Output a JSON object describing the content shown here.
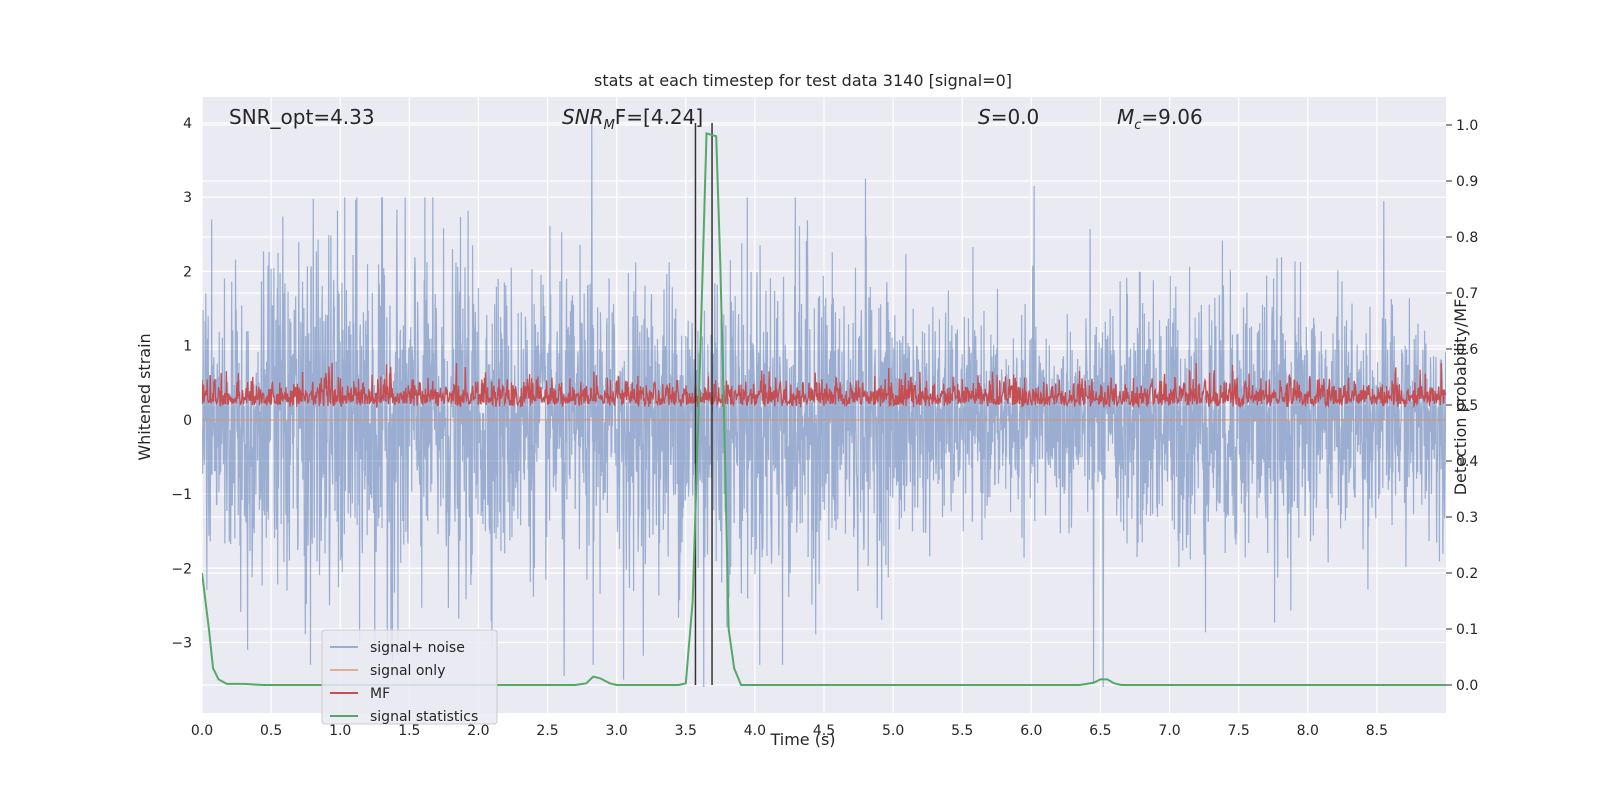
{
  "chart_data": {
    "type": "line",
    "title": "stats at each timestep for test data 3140 [signal=0]",
    "xlabel": "Time (s)",
    "ylabel_left": "Whitened strain",
    "ylabel_right": "Detection probability/MF",
    "xlim": [
      0.0,
      9.0
    ],
    "ylim_left": [
      -3.95,
      4.35
    ],
    "ylim_right": [
      -0.05,
      1.05
    ],
    "xticks": [
      0.0,
      0.5,
      1.0,
      1.5,
      2.0,
      2.5,
      3.0,
      3.5,
      4.0,
      4.5,
      5.0,
      5.5,
      6.0,
      6.5,
      7.0,
      7.5,
      8.0,
      8.5
    ],
    "xtick_labels": [
      "0.0",
      "0.5",
      "1.0",
      "1.5",
      "2.0",
      "2.5",
      "3.0",
      "3.5",
      "4.0",
      "4.5",
      "5.0",
      "5.5",
      "6.0",
      "6.5",
      "7.0",
      "7.5",
      "8.0",
      "8.5"
    ],
    "yticks_left": [
      -3,
      -2,
      -1,
      0,
      1,
      2,
      3,
      4
    ],
    "ytick_labels_left": [
      "−3",
      "−2",
      "−1",
      "0",
      "1",
      "2",
      "3",
      "4"
    ],
    "yticks_right": [
      0.0,
      0.1,
      0.2,
      0.3,
      0.4,
      0.5,
      0.6,
      0.7,
      0.8,
      0.9,
      1.0
    ],
    "ytick_labels_right": [
      "0.0",
      "0.1",
      "0.2",
      "0.3",
      "0.4",
      "0.5",
      "0.6",
      "0.7",
      "0.8",
      "0.9",
      "1.0"
    ],
    "annotations": {
      "snr_opt": "SNR_opt=4.33",
      "snr_mf_prefix": "SNR",
      "snr_mf_sub": "M",
      "snr_mf_suffix": "F=[4.24]",
      "s_var": "S",
      "s_value": "=0.0",
      "mc_var": "M",
      "mc_sub": "c",
      "mc_value": "=9.06"
    },
    "vlines": [
      3.57,
      3.69
    ],
    "series": [
      {
        "name": "signal+ noise",
        "axis": "left",
        "color": "#4c72b0",
        "alpha": 0.5,
        "kind": "noise",
        "amplitude_range": [
          -3.5,
          4.0
        ],
        "spikes": [
          [
            2.82,
            4.0
          ],
          [
            2.83,
            -3.3
          ],
          [
            2.62,
            -3.45
          ],
          [
            3.63,
            -3.6
          ],
          [
            4.8,
            3.25
          ],
          [
            6.02,
            3.15
          ],
          [
            8.55,
            2.95
          ],
          [
            6.45,
            -3.55
          ],
          [
            6.52,
            -3.6
          ],
          [
            0.33,
            -3.1
          ],
          [
            4.2,
            -3.3
          ],
          [
            0.07,
            2.7
          ],
          [
            3.05,
            -3.5
          ]
        ]
      },
      {
        "name": "signal only",
        "axis": "left",
        "color": "#dd8452",
        "alpha": 0.6,
        "x": [
          0.0,
          9.0
        ],
        "y": [
          0.0,
          0.0
        ]
      },
      {
        "name": "MF",
        "axis": "right",
        "color": "#c44e52",
        "kind": "mf",
        "baseline": 0.5,
        "range": [
          0.475,
          0.575
        ]
      },
      {
        "name": "signal statistics",
        "axis": "right",
        "color": "#55a868",
        "x": [
          0.0,
          0.02,
          0.05,
          0.08,
          0.12,
          0.18,
          0.3,
          0.45,
          2.7,
          2.78,
          2.83,
          2.88,
          2.95,
          3.0,
          3.45,
          3.5,
          3.55,
          3.6,
          3.65,
          3.72,
          3.75,
          3.78,
          3.81,
          3.85,
          3.9,
          6.35,
          6.45,
          6.5,
          6.55,
          6.6,
          6.65,
          9.0
        ],
        "y": [
          0.2,
          0.16,
          0.1,
          0.03,
          0.01,
          0.002,
          0.002,
          0.0,
          0.0,
          0.003,
          0.015,
          0.012,
          0.003,
          0.0,
          0.0,
          0.003,
          0.15,
          0.55,
          0.985,
          0.98,
          0.75,
          0.45,
          0.1,
          0.03,
          0.0,
          0.0,
          0.004,
          0.01,
          0.01,
          0.003,
          0.0,
          0.0
        ]
      }
    ],
    "legend": {
      "placement": "lower-left",
      "entries": [
        "signal+ noise",
        "signal only",
        "MF",
        "signal statistics"
      ]
    },
    "grid": true
  },
  "colors": {
    "axes_bg": "#eaeaf2",
    "grid": "#ffffff",
    "vline": "#333333"
  }
}
